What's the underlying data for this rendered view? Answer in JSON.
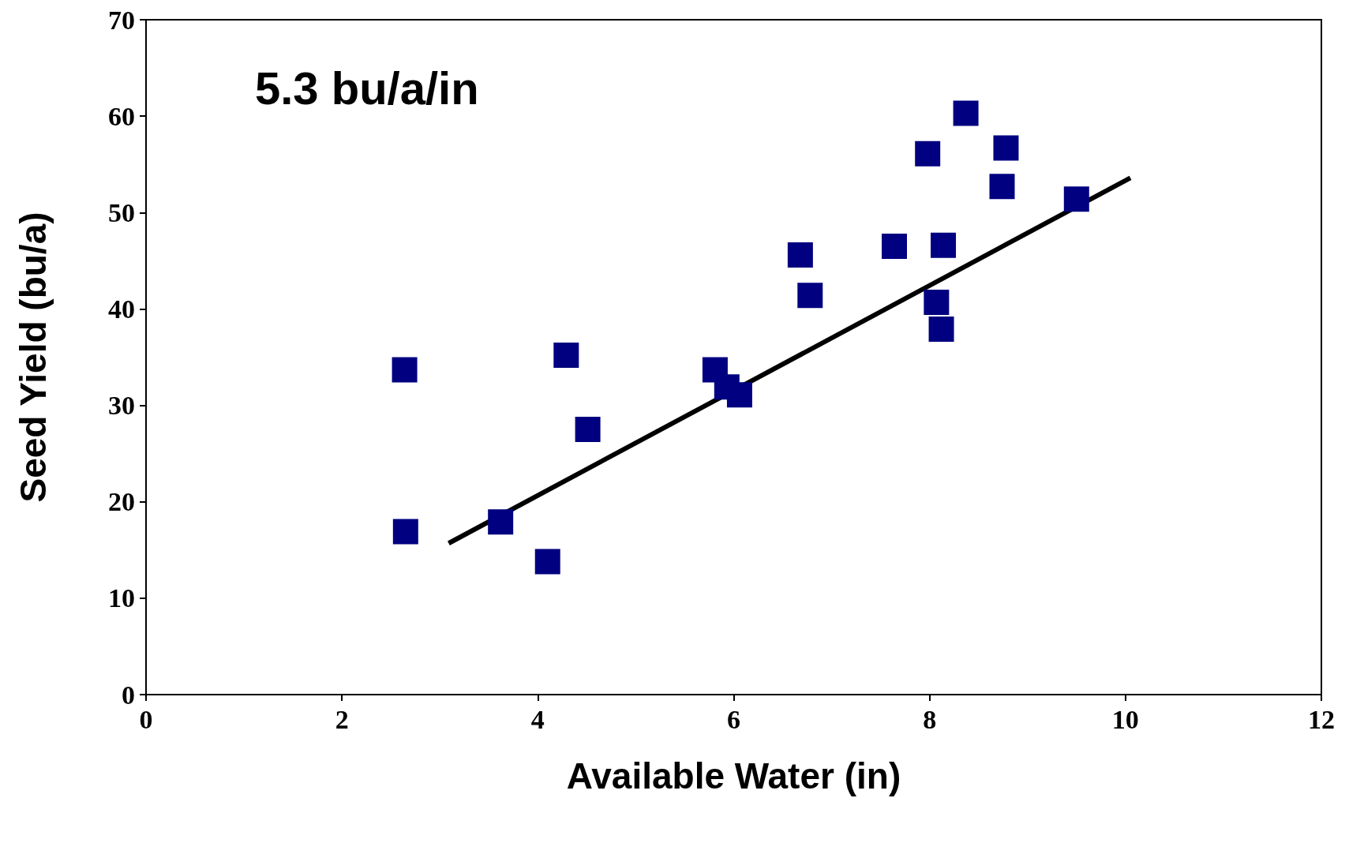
{
  "chart_data": {
    "type": "scatter",
    "xlabel": "Available Water (in)",
    "ylabel": "Seed Yield (bu/a)",
    "annotations": [
      "5.3 bu/a/in"
    ],
    "xlim": [
      0,
      12
    ],
    "xticks": [
      0,
      2,
      4,
      6,
      8,
      10,
      12
    ],
    "ylim": [
      0,
      70
    ],
    "yticks": [
      0,
      10,
      20,
      30,
      40,
      50,
      60,
      70
    ],
    "grid": false,
    "marker": "square",
    "series": [
      {
        "color": "#000080",
        "x": [
          2.64,
          2.65,
          3.62,
          4.1,
          4.29,
          4.51,
          5.81,
          5.93,
          6.06,
          6.68,
          6.78,
          7.64,
          7.98,
          8.07,
          8.12,
          8.14,
          8.37,
          8.74,
          8.78,
          9.5
        ],
        "values": [
          33.7,
          16.9,
          17.9,
          13.8,
          35.2,
          27.5,
          33.7,
          31.9,
          31.1,
          45.6,
          41.4,
          46.5,
          56.1,
          40.7,
          37.9,
          46.6,
          60.3,
          52.7,
          56.7,
          51.4
        ]
      },
      {
        "type": "line",
        "color": "#000000",
        "line_style": "solid",
        "marker": "none",
        "x": [
          3.09,
          10.05
        ],
        "values": [
          15.7,
          53.6
        ]
      }
    ]
  }
}
